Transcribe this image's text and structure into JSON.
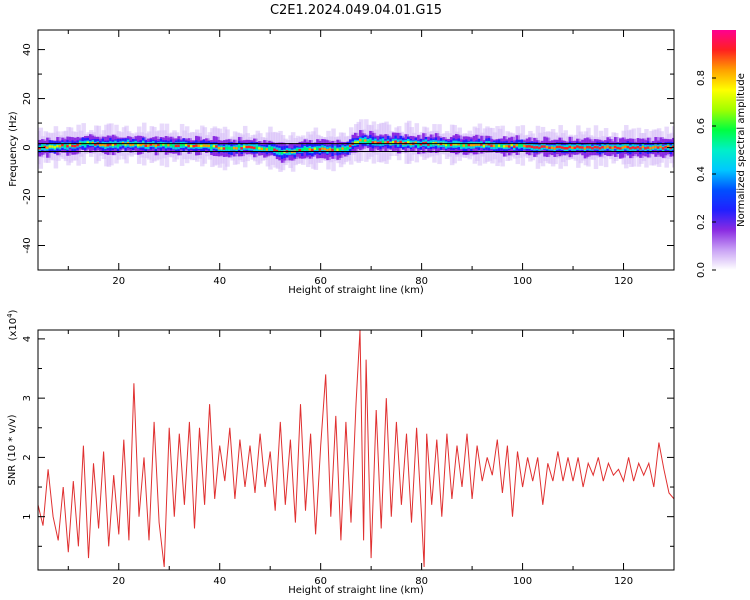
{
  "figure": {
    "title": "C2E1.2024.049.04.01.G15"
  },
  "chart_data": [
    {
      "type": "heatmap",
      "panel": "top",
      "xlabel": "Height of straight line (km)",
      "ylabel": "Frequency (Hz)",
      "xlim": [
        4,
        130
      ],
      "ylim": [
        -50,
        48
      ],
      "x_ticks": [
        20,
        40,
        60,
        80,
        100,
        120
      ],
      "y_ticks": [
        40,
        20,
        0,
        -20,
        -40
      ],
      "colorbar": {
        "label": "Normalized spectral amplitude",
        "range": [
          0.0,
          1.0
        ],
        "ticks": [
          0.0,
          0.2,
          0.4,
          0.6,
          0.8
        ],
        "colors": [
          "#ffffff",
          "#c9a2f5",
          "#8a2be2",
          "#2020ff",
          "#0050ff",
          "#00c8ff",
          "#00f0c8",
          "#00ff40",
          "#a0ff00",
          "#ffff00",
          "#ffa000",
          "#ff2020",
          "#ff0090"
        ]
      },
      "ridge_frequency_hz": [
        [
          4,
          0
        ],
        [
          8,
          0.5
        ],
        [
          12,
          1
        ],
        [
          14,
          2
        ],
        [
          18,
          1
        ],
        [
          22,
          1.5
        ],
        [
          26,
          1
        ],
        [
          30,
          1
        ],
        [
          34,
          1
        ],
        [
          38,
          0.5
        ],
        [
          40,
          0
        ],
        [
          45,
          0
        ],
        [
          50,
          -0.5
        ],
        [
          53,
          -2
        ],
        [
          56,
          -1
        ],
        [
          60,
          -0.5
        ],
        [
          63,
          -1
        ],
        [
          65,
          -0.5
        ],
        [
          68,
          3
        ],
        [
          72,
          2
        ],
        [
          76,
          2
        ],
        [
          80,
          1.5
        ],
        [
          84,
          1.5
        ],
        [
          90,
          1
        ],
        [
          95,
          1
        ],
        [
          100,
          0.5
        ],
        [
          105,
          0
        ],
        [
          110,
          0
        ],
        [
          120,
          0
        ],
        [
          130,
          0
        ]
      ]
    },
    {
      "type": "line",
      "panel": "bottom",
      "xlabel": "Height of straight line (km)",
      "ylabel": "SNR (10 * v/v)",
      "y_multiplier_label": "(x10",
      "y_multiplier_exp": "4",
      "xlim": [
        4,
        130
      ],
      "ylim": [
        0.1,
        4.15
      ],
      "x_ticks": [
        20,
        40,
        60,
        80,
        100,
        120
      ],
      "y_ticks": [
        1,
        2,
        3,
        4
      ],
      "series": [
        {
          "color": "#e03030",
          "points": [
            [
              4,
              1.2
            ],
            [
              5,
              0.85
            ],
            [
              6,
              1.8
            ],
            [
              7,
              1.0
            ],
            [
              8,
              0.6
            ],
            [
              9,
              1.5
            ],
            [
              10,
              0.4
            ],
            [
              11,
              1.6
            ],
            [
              12,
              0.5
            ],
            [
              13,
              2.2
            ],
            [
              14,
              0.3
            ],
            [
              15,
              1.9
            ],
            [
              16,
              0.8
            ],
            [
              17,
              2.1
            ],
            [
              18,
              0.5
            ],
            [
              19,
              1.7
            ],
            [
              20,
              0.7
            ],
            [
              21,
              2.3
            ],
            [
              22,
              0.6
            ],
            [
              23,
              3.25
            ],
            [
              24,
              1.0
            ],
            [
              25,
              2.0
            ],
            [
              26,
              0.6
            ],
            [
              27,
              2.6
            ],
            [
              28,
              0.9
            ],
            [
              29,
              0.15
            ],
            [
              30,
              2.5
            ],
            [
              31,
              1.0
            ],
            [
              32,
              2.4
            ],
            [
              33,
              1.2
            ],
            [
              34,
              2.6
            ],
            [
              35,
              0.8
            ],
            [
              36,
              2.5
            ],
            [
              37,
              1.2
            ],
            [
              38,
              2.9
            ],
            [
              39,
              1.3
            ],
            [
              40,
              2.2
            ],
            [
              41,
              1.6
            ],
            [
              42,
              2.5
            ],
            [
              43,
              1.3
            ],
            [
              44,
              2.3
            ],
            [
              45,
              1.5
            ],
            [
              46,
              2.2
            ],
            [
              47,
              1.4
            ],
            [
              48,
              2.4
            ],
            [
              49,
              1.5
            ],
            [
              50,
              2.1
            ],
            [
              51,
              1.1
            ],
            [
              52,
              2.6
            ],
            [
              53,
              1.2
            ],
            [
              54,
              2.3
            ],
            [
              55,
              0.9
            ],
            [
              56,
              2.9
            ],
            [
              57,
              1.1
            ],
            [
              58,
              2.4
            ],
            [
              59,
              0.7
            ],
            [
              60,
              2.2
            ],
            [
              61,
              3.4
            ],
            [
              62,
              1.0
            ],
            [
              63,
              2.7
            ],
            [
              64,
              0.6
            ],
            [
              65,
              2.6
            ],
            [
              66,
              0.9
            ],
            [
              67,
              2.9
            ],
            [
              67.8,
              4.15
            ],
            [
              68.5,
              0.6
            ],
            [
              69,
              3.65
            ],
            [
              70,
              0.3
            ],
            [
              71,
              2.8
            ],
            [
              72,
              0.8
            ],
            [
              73,
              3.0
            ],
            [
              74,
              1.0
            ],
            [
              75,
              2.6
            ],
            [
              76,
              1.2
            ],
            [
              77,
              2.4
            ],
            [
              78,
              0.9
            ],
            [
              79,
              2.5
            ],
            [
              80,
              1.0
            ],
            [
              80.5,
              0.15
            ],
            [
              81,
              2.4
            ],
            [
              82,
              1.2
            ],
            [
              83,
              2.3
            ],
            [
              84,
              1.0
            ],
            [
              85,
              2.4
            ],
            [
              86,
              1.3
            ],
            [
              87,
              2.2
            ],
            [
              88,
              1.5
            ],
            [
              89,
              2.4
            ],
            [
              90,
              1.3
            ],
            [
              91,
              2.2
            ],
            [
              92,
              1.6
            ],
            [
              93,
              2.0
            ],
            [
              94,
              1.7
            ],
            [
              95,
              2.3
            ],
            [
              96,
              1.4
            ],
            [
              97,
              2.2
            ],
            [
              98,
              1.0
            ],
            [
              99,
              2.1
            ],
            [
              100,
              1.5
            ],
            [
              101,
              2.0
            ],
            [
              102,
              1.6
            ],
            [
              103,
              2.0
            ],
            [
              104,
              1.2
            ],
            [
              105,
              1.9
            ],
            [
              106,
              1.6
            ],
            [
              107,
              2.1
            ],
            [
              108,
              1.6
            ],
            [
              109,
              2.0
            ],
            [
              110,
              1.6
            ],
            [
              111,
              2.0
            ],
            [
              112,
              1.5
            ],
            [
              113,
              1.9
            ],
            [
              114,
              1.7
            ],
            [
              115,
              2.0
            ],
            [
              116,
              1.6
            ],
            [
              117,
              1.9
            ],
            [
              118,
              1.7
            ],
            [
              119,
              1.8
            ],
            [
              120,
              1.6
            ],
            [
              121,
              2.0
            ],
            [
              122,
              1.6
            ],
            [
              123,
              1.9
            ],
            [
              124,
              1.7
            ],
            [
              125,
              1.9
            ],
            [
              126,
              1.5
            ],
            [
              127,
              2.25
            ],
            [
              128,
              1.8
            ],
            [
              129,
              1.4
            ],
            [
              130,
              1.3
            ]
          ]
        }
      ]
    }
  ]
}
